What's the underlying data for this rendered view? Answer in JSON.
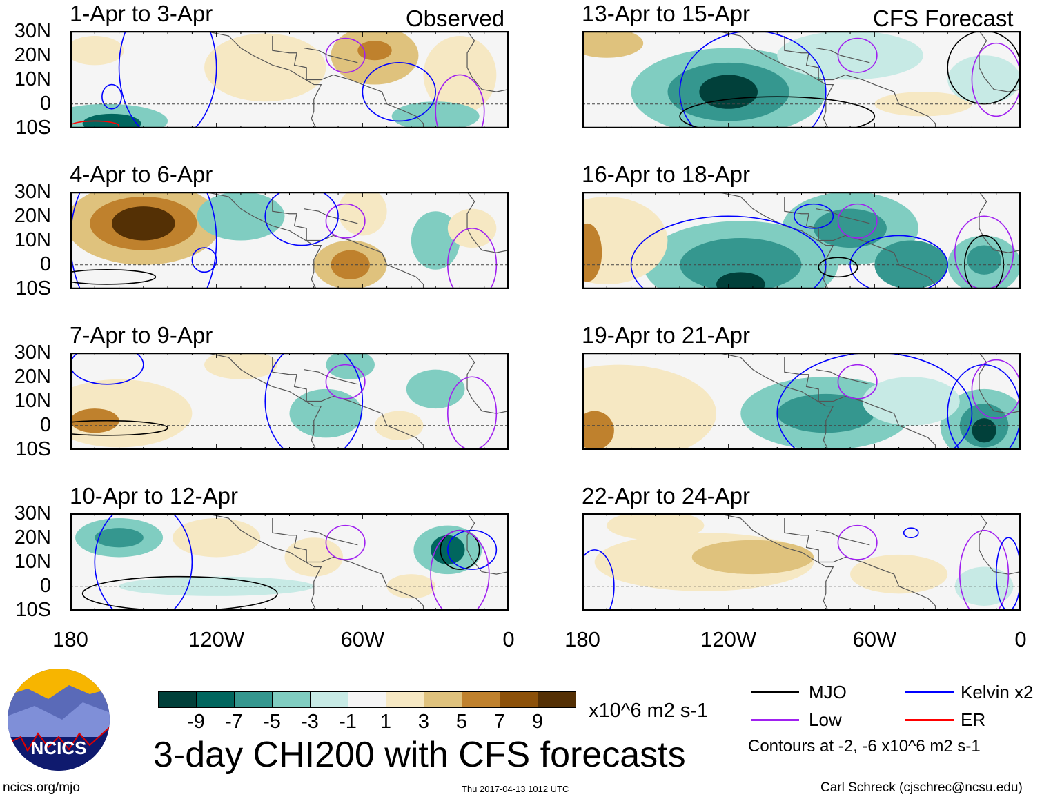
{
  "panels_left": [
    {
      "title": "1-Apr to 3-Apr",
      "tag": "Observed"
    },
    {
      "title": "4-Apr to 6-Apr"
    },
    {
      "title": "7-Apr to 9-Apr"
    },
    {
      "title": "10-Apr to 12-Apr"
    }
  ],
  "panels_right": [
    {
      "title": "13-Apr to 15-Apr",
      "tag": "CFS Forecast"
    },
    {
      "title": "16-Apr to 18-Apr"
    },
    {
      "title": "19-Apr to 21-Apr"
    },
    {
      "title": "22-Apr to 24-Apr"
    }
  ],
  "lat_labels": [
    "30N",
    "20N",
    "10N",
    "0",
    "10S"
  ],
  "lon_labels": [
    "180",
    "120W",
    "60W",
    "0"
  ],
  "colorbar": {
    "colors": [
      "#01403a",
      "#01665e",
      "#35978f",
      "#80cdc1",
      "#c7eae5",
      "#f5f5f5",
      "#f6e8c3",
      "#dfc27d",
      "#bf812d",
      "#8c510a",
      "#543005"
    ],
    "labels": [
      "-9",
      "-7",
      "-5",
      "-3",
      "-1",
      "1",
      "3",
      "5",
      "7",
      "9"
    ],
    "units": "x10^6 m2 s-1"
  },
  "title": "3-day CHI200 with CFS forecasts",
  "legend": {
    "items": [
      {
        "label": "MJO",
        "color": "#000000"
      },
      {
        "label": "Kelvin x2",
        "color": "#0000ff"
      },
      {
        "label": "Low",
        "color": "#a020f0"
      },
      {
        "label": "ER",
        "color": "#ff0000"
      }
    ],
    "contours_note": "Contours at -2, -6 x10^6 m2 s-1"
  },
  "logo_text": "NCICS",
  "footer": {
    "url": "ncics.org/mjo",
    "timestamp": "Thu 2017-04-13 1012 UTC",
    "author": "Carl Schreck (cjschrec@ncsu.edu)"
  }
}
